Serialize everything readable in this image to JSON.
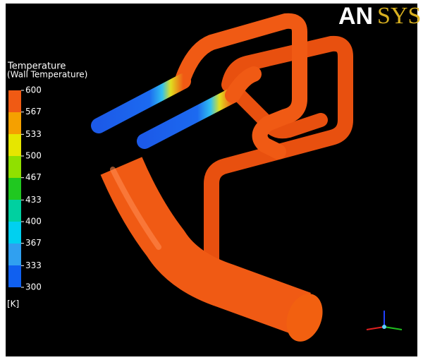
{
  "logo": [
    "AN",
    "SYS"
  ],
  "legend": {
    "title": "Temperature",
    "subtitle": "(Wall Temperature)",
    "ticks": [
      600,
      567,
      533,
      500,
      467,
      433,
      400,
      367,
      333,
      300
    ],
    "unit": "[K]"
  }
}
